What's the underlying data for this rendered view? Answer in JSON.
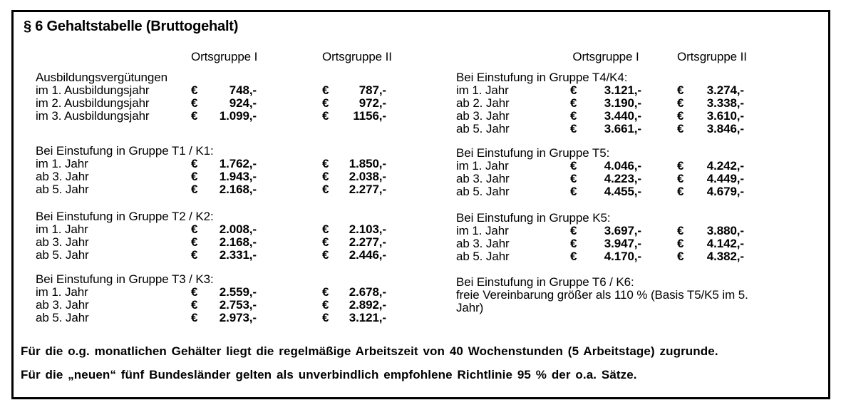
{
  "title": "§ 6 Gehaltstabelle (Bruttogehalt)",
  "currency_symbol": "€",
  "col_headers": [
    "Ortsgruppe I",
    "Ortsgruppe II"
  ],
  "left_sections": [
    {
      "heading": "Ausbildungsvergütungen",
      "rows": [
        {
          "label": "im 1. Ausbildungsjahr",
          "og1": "748,-",
          "og2": "787,-"
        },
        {
          "label": "im 2. Ausbildungsjahr",
          "og1": "924,-",
          "og2": "972,-"
        },
        {
          "label": "im 3. Ausbildungsjahr",
          "og1": "1.099,-",
          "og2": "1156,-"
        }
      ]
    },
    {
      "heading": "Bei Einstufung in Gruppe T1 / K1:",
      "rows": [
        {
          "label": "im 1. Jahr",
          "og1": "1.762,-",
          "og2": "1.850,-"
        },
        {
          "label": "ab 3. Jahr",
          "og1": "1.943,-",
          "og2": "2.038,-"
        },
        {
          "label": "ab 5. Jahr",
          "og1": "2.168,-",
          "og2": "2.277,-"
        }
      ]
    },
    {
      "heading": "Bei Einstufung in Gruppe T2 / K2:",
      "rows": [
        {
          "label": "im 1. Jahr",
          "og1": "2.008,-",
          "og2": "2.103,-"
        },
        {
          "label": "ab 3. Jahr",
          "og1": "2.168,-",
          "og2": "2.277,-"
        },
        {
          "label": "ab 5. Jahr",
          "og1": "2.331,-",
          "og2": "2.446,-"
        }
      ]
    },
    {
      "heading": "Bei Einstufung in Gruppe T3 / K3:",
      "rows": [
        {
          "label": "im 1. Jahr",
          "og1": "2.559,-",
          "og2": "2.678,-"
        },
        {
          "label": "ab 3. Jahr",
          "og1": "2.753,-",
          "og2": "2.892,-"
        },
        {
          "label": "ab 5. Jahr",
          "og1": "2.973,-",
          "og2": "3.121,-"
        }
      ]
    }
  ],
  "right_sections": [
    {
      "heading": "Bei Einstufung in Gruppe T4/K4:",
      "rows": [
        {
          "label": "im 1. Jahr",
          "og1": "3.121,-",
          "og2": "3.274,-"
        },
        {
          "label": "ab 2. Jahr",
          "og1": "3.190,-",
          "og2": "3.338,-"
        },
        {
          "label": "ab 3. Jahr",
          "og1": "3.440,-",
          "og2": "3.610,-"
        },
        {
          "label": "ab 5. Jahr",
          "og1": "3.661,-",
          "og2": "3.846,-"
        }
      ]
    },
    {
      "heading": "Bei Einstufung in Gruppe T5:",
      "rows": [
        {
          "label": "im 1. Jahr",
          "og1": "4.046,-",
          "og2": "4.242,-"
        },
        {
          "label": "ab 3. Jahr",
          "og1": "4.223,-",
          "og2": "4.449,-"
        },
        {
          "label": "ab 5. Jahr",
          "og1": "4.455,-",
          "og2": "4.679,-"
        }
      ]
    },
    {
      "heading": "Bei Einstufung in Gruppe K5:",
      "rows": [
        {
          "label": "im 1. Jahr",
          "og1": "3.697,-",
          "og2": "3.880,-"
        },
        {
          "label": "ab 3. Jahr",
          "og1": "3.947,-",
          "og2": "4.142,-"
        },
        {
          "label": "ab 5. Jahr",
          "og1": "4.170,-",
          "og2": "4.382,-"
        }
      ]
    },
    {
      "heading": "Bei Einstufung in Gruppe T6 / K6:",
      "note": "freie Vereinbarung größer als 110 % (Basis T5/K5 im 5. Jahr)",
      "rows": []
    }
  ],
  "footnotes": [
    "Für die o.g. monatlichen Gehälter liegt die regelmäßige Arbeitszeit von 40 Wochenstunden (5 Arbeitstage) zugrunde.",
    "Für die „neuen“ fünf Bundesländer gelten als unverbindlich empfohlene Richtlinie 95 % der o.a. Sätze."
  ]
}
